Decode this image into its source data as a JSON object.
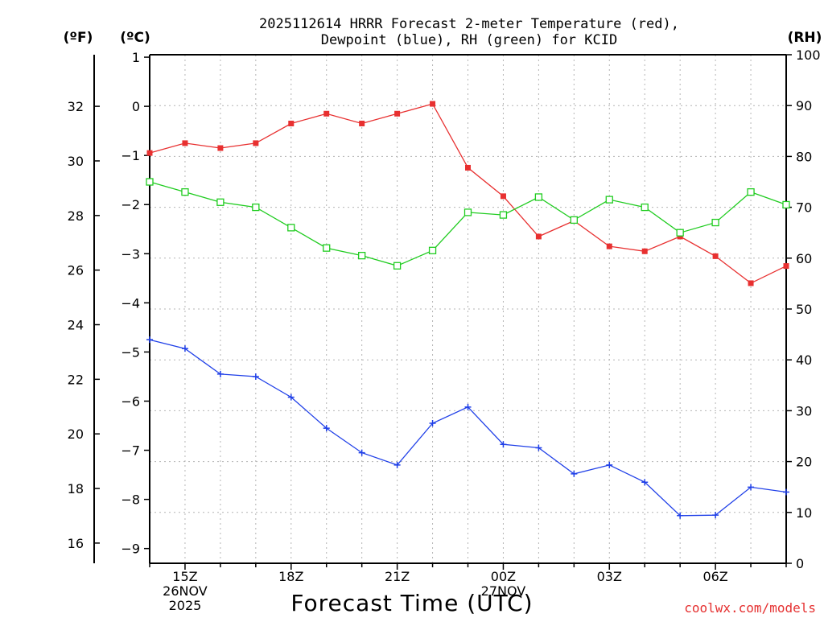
{
  "chart_data": {
    "type": "line",
    "title_line1": "2025112614 HRRR Forecast 2-meter Temperature (red),",
    "title_line2": "Dewpoint (blue), RH (green) for KCID",
    "xlabel": "Forecast Time (UTC)",
    "credit": "coolwx.com/models",
    "left_outer_axis": {
      "label": "(ºF)",
      "ticks": [
        16,
        18,
        20,
        22,
        24,
        26,
        28,
        30,
        32
      ]
    },
    "left_axis": {
      "label": "(ºC)",
      "ylim": [
        -9.3,
        1.05
      ],
      "ticks": [
        -9,
        -8,
        -7,
        -6,
        -5,
        -4,
        -3,
        -2,
        -1,
        0,
        1
      ]
    },
    "right_axis": {
      "label": "(RH)",
      "ylim": [
        0,
        100
      ],
      "ticks": [
        0,
        10,
        20,
        30,
        40,
        50,
        60,
        70,
        80,
        90,
        100
      ]
    },
    "x": {
      "start_hour": 14,
      "end_hour": 32
    },
    "x_ticks": [
      {
        "hour": 15,
        "lines": [
          "15Z",
          "26NOV",
          "2025"
        ]
      },
      {
        "hour": 18,
        "lines": [
          "18Z"
        ]
      },
      {
        "hour": 21,
        "lines": [
          "21Z"
        ]
      },
      {
        "hour": 24,
        "lines": [
          "00Z",
          "27NOV"
        ]
      },
      {
        "hour": 27,
        "lines": [
          "03Z"
        ]
      },
      {
        "hour": 30,
        "lines": [
          "06Z"
        ]
      }
    ],
    "series": [
      {
        "name": "Temperature",
        "color": "#e83030",
        "marker": "filled-square",
        "axis": "left",
        "values": [
          -0.95,
          -0.75,
          -0.85,
          -0.75,
          -0.35,
          -0.15,
          -0.35,
          -0.15,
          0.05,
          -1.25,
          -1.83,
          -2.65,
          -2.33,
          -2.85,
          -2.95,
          -2.65,
          -3.05,
          -3.6,
          -3.25
        ]
      },
      {
        "name": "Dewpoint",
        "color": "#2040e8",
        "marker": "plus",
        "axis": "left",
        "values": [
          -4.75,
          -4.93,
          -5.45,
          -5.5,
          -5.92,
          -6.55,
          -7.05,
          -7.3,
          -6.45,
          -6.12,
          -6.88,
          -6.95,
          -7.48,
          -7.3,
          -7.65,
          -8.33,
          -8.32,
          -7.75,
          -7.85
        ]
      },
      {
        "name": "RH",
        "color": "#20cc20",
        "marker": "open-square",
        "axis": "right",
        "values": [
          75,
          73,
          71,
          70,
          66,
          62,
          60.5,
          58.5,
          61.5,
          69,
          68.5,
          72,
          67.5,
          71.5,
          70,
          65,
          67,
          73,
          70.5
        ]
      }
    ]
  }
}
